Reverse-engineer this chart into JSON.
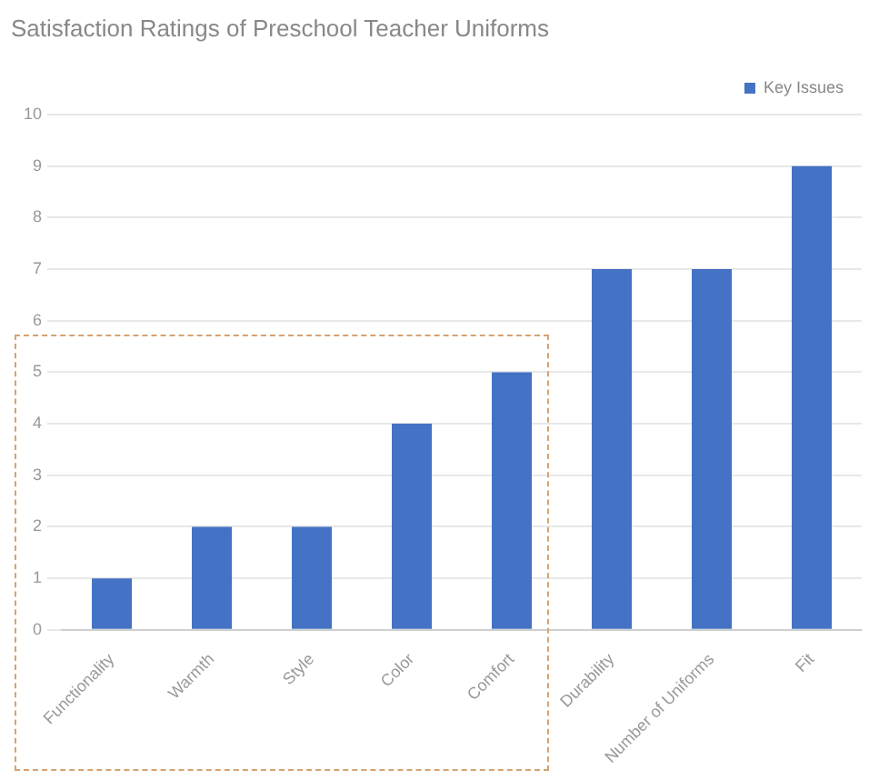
{
  "chart_data": {
    "type": "bar",
    "title": "Satisfaction Ratings of Preschool Teacher Uniforms",
    "categories": [
      "Functionality",
      "Warmth",
      "Style",
      "Color",
      "Comfort",
      "Durability",
      "Number of Uniforms",
      "Fit"
    ],
    "series": [
      {
        "name": "Key Issues",
        "color": "#4472c4",
        "values": [
          1,
          2,
          2,
          4,
          5,
          7,
          7,
          9
        ]
      }
    ],
    "ylim": [
      0,
      10
    ],
    "yticks": [
      0,
      1,
      2,
      3,
      4,
      5,
      6,
      7,
      8,
      9,
      10
    ],
    "grid": "y",
    "legend": "top right"
  }
}
